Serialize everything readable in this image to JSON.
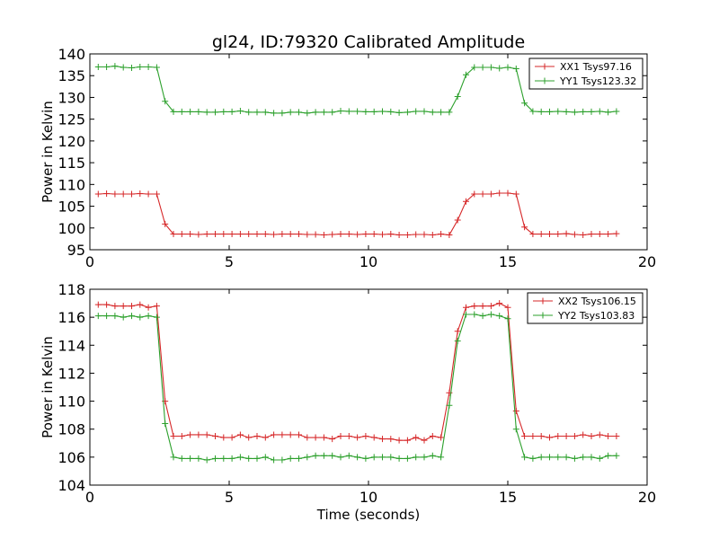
{
  "chart_data": [
    {
      "type": "line",
      "title": "gl24, ID:79320 Calibrated Amplitude",
      "xlabel": "",
      "ylabel": "Power in Kelvin",
      "xlim": [
        0,
        20
      ],
      "ylim": [
        95,
        140
      ],
      "xticks": [
        0,
        5,
        10,
        15,
        20
      ],
      "yticks": [
        95,
        100,
        105,
        110,
        115,
        120,
        125,
        130,
        135,
        140
      ],
      "grid": false,
      "legend": "top-right",
      "x": [
        0.3,
        0.6,
        0.9,
        1.2,
        1.5,
        1.8,
        2.1,
        2.4,
        2.7,
        3.0,
        3.3,
        3.6,
        3.9,
        4.2,
        4.5,
        4.8,
        5.1,
        5.4,
        5.7,
        6.0,
        6.3,
        6.6,
        6.9,
        7.2,
        7.5,
        7.8,
        8.1,
        8.4,
        8.7,
        9.0,
        9.3,
        9.6,
        9.9,
        10.2,
        10.5,
        10.8,
        11.1,
        11.4,
        11.7,
        12.0,
        12.3,
        12.6,
        12.9,
        13.2,
        13.5,
        13.8,
        14.1,
        14.4,
        14.7,
        15.0,
        15.3,
        15.6,
        15.9,
        16.2,
        16.5,
        16.8,
        17.1,
        17.4,
        17.7,
        18.0,
        18.3,
        18.6,
        18.9
      ],
      "series": [
        {
          "name": "XX1 Tsys97.16",
          "color": "#d62728",
          "values": [
            107.8,
            107.9,
            107.8,
            107.8,
            107.8,
            107.9,
            107.8,
            107.8,
            100.9,
            98.6,
            98.6,
            98.6,
            98.5,
            98.6,
            98.6,
            98.6,
            98.6,
            98.6,
            98.6,
            98.6,
            98.6,
            98.5,
            98.6,
            98.6,
            98.6,
            98.5,
            98.5,
            98.4,
            98.5,
            98.6,
            98.6,
            98.5,
            98.6,
            98.6,
            98.5,
            98.6,
            98.4,
            98.4,
            98.5,
            98.5,
            98.4,
            98.6,
            98.4,
            101.8,
            106.1,
            107.8,
            107.8,
            107.8,
            108.0,
            108.0,
            107.8,
            100.2,
            98.6,
            98.6,
            98.6,
            98.6,
            98.7,
            98.5,
            98.4,
            98.6,
            98.6,
            98.6,
            98.7
          ]
        },
        {
          "name": "YY1 Tsys123.32",
          "color": "#2ca02c",
          "values": [
            137.0,
            137.0,
            137.2,
            136.9,
            136.8,
            137.0,
            137.0,
            136.9,
            129.1,
            126.7,
            126.7,
            126.7,
            126.7,
            126.6,
            126.6,
            126.7,
            126.7,
            126.9,
            126.6,
            126.6,
            126.6,
            126.4,
            126.4,
            126.6,
            126.6,
            126.4,
            126.6,
            126.6,
            126.6,
            126.9,
            126.8,
            126.8,
            126.7,
            126.7,
            126.8,
            126.7,
            126.5,
            126.6,
            126.8,
            126.8,
            126.6,
            126.6,
            126.6,
            130.2,
            135.2,
            136.9,
            136.9,
            136.9,
            136.7,
            136.9,
            136.6,
            128.7,
            126.8,
            126.7,
            126.7,
            126.8,
            126.7,
            126.6,
            126.7,
            126.7,
            126.8,
            126.6,
            126.8
          ]
        }
      ]
    },
    {
      "type": "line",
      "title": "",
      "xlabel": "Time (seconds)",
      "ylabel": "Power in Kelvin",
      "xlim": [
        0,
        20
      ],
      "ylim": [
        104,
        118
      ],
      "xticks": [
        0,
        5,
        10,
        15,
        20
      ],
      "yticks": [
        104,
        106,
        108,
        110,
        112,
        114,
        116,
        118
      ],
      "grid": false,
      "legend": "top-right",
      "x": [
        0.3,
        0.6,
        0.9,
        1.2,
        1.5,
        1.8,
        2.1,
        2.4,
        2.7,
        3.0,
        3.3,
        3.6,
        3.9,
        4.2,
        4.5,
        4.8,
        5.1,
        5.4,
        5.7,
        6.0,
        6.3,
        6.6,
        6.9,
        7.2,
        7.5,
        7.8,
        8.1,
        8.4,
        8.7,
        9.0,
        9.3,
        9.6,
        9.9,
        10.2,
        10.5,
        10.8,
        11.1,
        11.4,
        11.7,
        12.0,
        12.3,
        12.6,
        12.9,
        13.2,
        13.5,
        13.8,
        14.1,
        14.4,
        14.7,
        15.0,
        15.3,
        15.6,
        15.9,
        16.2,
        16.5,
        16.8,
        17.1,
        17.4,
        17.7,
        18.0,
        18.3,
        18.6,
        18.9
      ],
      "series": [
        {
          "name": "XX2 Tsys106.15",
          "color": "#d62728",
          "values": [
            116.9,
            116.9,
            116.8,
            116.8,
            116.8,
            116.9,
            116.7,
            116.8,
            110.0,
            107.5,
            107.5,
            107.6,
            107.6,
            107.6,
            107.5,
            107.4,
            107.4,
            107.6,
            107.4,
            107.5,
            107.4,
            107.6,
            107.6,
            107.6,
            107.6,
            107.4,
            107.4,
            107.4,
            107.3,
            107.5,
            107.5,
            107.4,
            107.5,
            107.4,
            107.3,
            107.3,
            107.2,
            107.2,
            107.4,
            107.2,
            107.5,
            107.4,
            110.6,
            115.0,
            116.7,
            116.8,
            116.8,
            116.8,
            117.0,
            116.7,
            109.3,
            107.5,
            107.5,
            107.5,
            107.4,
            107.5,
            107.5,
            107.5,
            107.6,
            107.5,
            107.6,
            107.5,
            107.5
          ]
        },
        {
          "name": "YY2 Tsys103.83",
          "color": "#2ca02c",
          "values": [
            116.1,
            116.1,
            116.1,
            116.0,
            116.1,
            116.0,
            116.1,
            116.0,
            108.4,
            106.0,
            105.9,
            105.9,
            105.9,
            105.8,
            105.9,
            105.9,
            105.9,
            106.0,
            105.9,
            105.9,
            106.0,
            105.8,
            105.8,
            105.9,
            105.9,
            106.0,
            106.1,
            106.1,
            106.1,
            106.0,
            106.1,
            106.0,
            105.9,
            106.0,
            106.0,
            106.0,
            105.9,
            105.9,
            106.0,
            106.0,
            106.1,
            106.0,
            109.7,
            114.3,
            116.2,
            116.2,
            116.1,
            116.2,
            116.1,
            115.9,
            108.0,
            106.0,
            105.9,
            106.0,
            106.0,
            106.0,
            106.0,
            105.9,
            106.0,
            106.0,
            105.9,
            106.1,
            106.1
          ]
        }
      ]
    }
  ]
}
